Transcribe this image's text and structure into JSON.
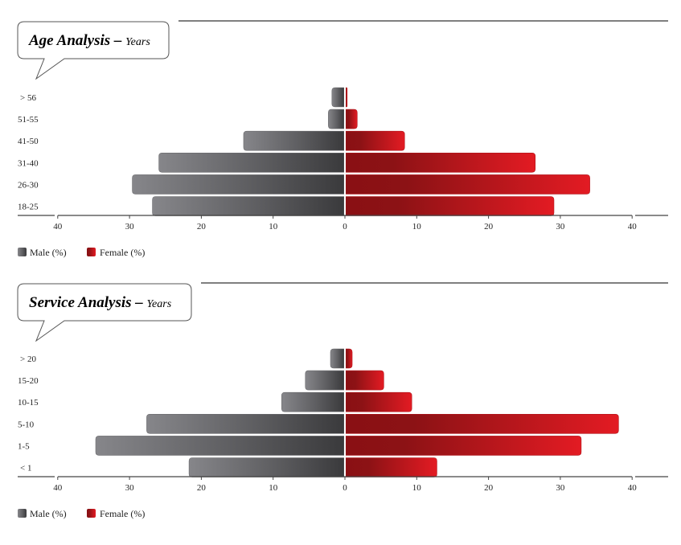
{
  "colors": {
    "male_light": "#86868a",
    "male_dark": "#3a3a3c",
    "female_dark": "#8a1014",
    "female_light": "#e31b23"
  },
  "chart_data": [
    {
      "type": "bar",
      "orientation": "horizontal-pyramid",
      "title": "Age Analysis",
      "subtitle": "Years",
      "categories": [
        "> 56",
        "51-55",
        "41-50",
        "31-40",
        "26-30",
        "18-25"
      ],
      "series": [
        {
          "name": "Male (%)",
          "values": [
            1.7,
            2.2,
            14.0,
            25.8,
            29.5,
            26.7
          ]
        },
        {
          "name": "Female (%)",
          "values": [
            0.2,
            1.6,
            8.2,
            26.4,
            34.0,
            29.0
          ]
        }
      ],
      "xticks": [
        "40",
        "30",
        "20",
        "10",
        "0",
        "10",
        "20",
        "30",
        "40"
      ],
      "xlim": [
        -40,
        40
      ],
      "legend": "bottom-left",
      "grid": false
    },
    {
      "type": "bar",
      "orientation": "horizontal-pyramid",
      "title": "Service Analysis",
      "subtitle": "Years",
      "categories": [
        "> 20",
        "15-20",
        "10-15",
        "5-10",
        "1-5",
        "< 1"
      ],
      "series": [
        {
          "name": "Male (%)",
          "values": [
            1.9,
            5.4,
            8.7,
            27.5,
            34.6,
            21.6
          ]
        },
        {
          "name": "Female (%)",
          "values": [
            0.9,
            5.3,
            9.2,
            38.0,
            32.8,
            12.7
          ]
        }
      ],
      "xticks": [
        "40",
        "30",
        "20",
        "10",
        "0",
        "10",
        "20",
        "30",
        "40"
      ],
      "xlim": [
        -40,
        40
      ],
      "legend": "bottom-left",
      "grid": false
    }
  ]
}
